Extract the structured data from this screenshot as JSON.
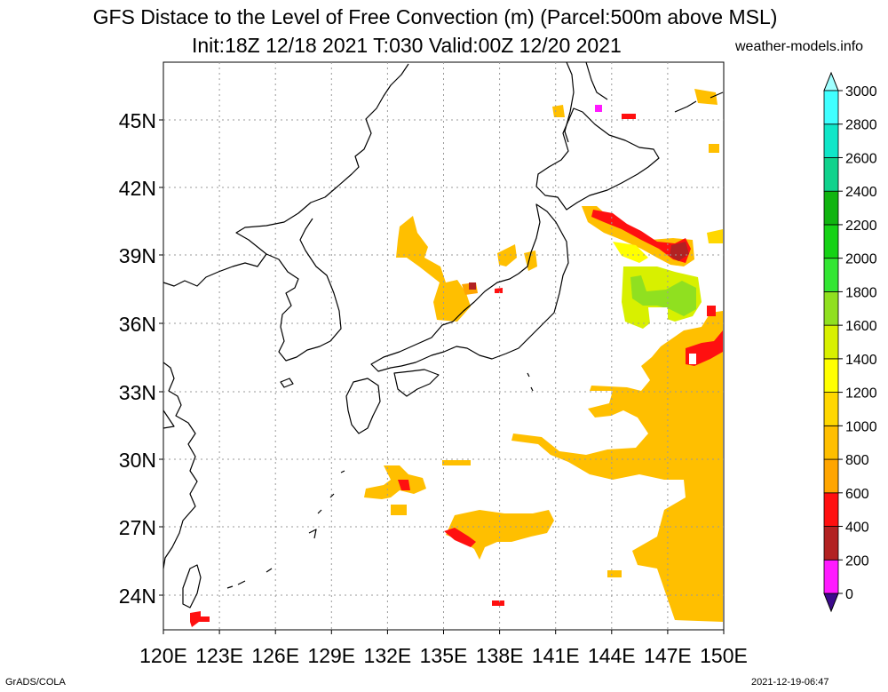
{
  "header": {
    "title_line1": "GFS Distace to the Level of Free Convection (m) (Parcel:500m above MSL)",
    "title_line2": "Init:18Z 12/18 2021 T:030 Valid:00Z 12/20 2021",
    "site": "weather-models.info"
  },
  "footer": {
    "software": "GrADS/COLA",
    "timestamp": "2021-12-19-06:47"
  },
  "map": {
    "lon_labels": [
      "120E",
      "123E",
      "126E",
      "129E",
      "132E",
      "135E",
      "138E",
      "141E",
      "144E",
      "147E",
      "150E"
    ],
    "lat_labels": [
      "45N",
      "42N",
      "39N",
      "36N",
      "33N",
      "30N",
      "27N",
      "24N"
    ]
  },
  "colorbar": {
    "levels": [
      "0",
      "200",
      "400",
      "600",
      "800",
      "1000",
      "1200",
      "1400",
      "1600",
      "1800",
      "2000",
      "2200",
      "2400",
      "2600",
      "2800",
      "3000"
    ],
    "colors": [
      "#3c0a8c",
      "#ff1aff",
      "#b22222",
      "#ff1010",
      "#ffa500",
      "#ffbf00",
      "#ffd700",
      "#ffff00",
      "#d8f000",
      "#90e020",
      "#33e633",
      "#16d216",
      "#10b410",
      "#10d28c",
      "#10e6c8",
      "#40ffff",
      "#a0ffff"
    ]
  },
  "colors": {
    "coastline": "#000000",
    "grid": "#9a9a9a"
  }
}
